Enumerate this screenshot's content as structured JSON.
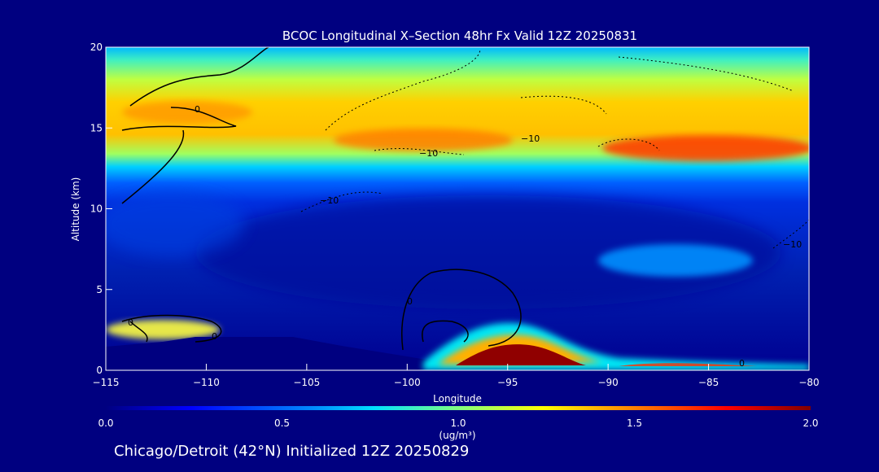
{
  "chart_data": {
    "type": "heatmap",
    "title": "BCOC Longitudinal X–Section 48hr  Fx Valid 12Z 20250831",
    "xlabel": "Longitude",
    "ylabel": "Altitude (km)",
    "xlim": [
      -115,
      -80
    ],
    "ylim": [
      0,
      20
    ],
    "x_ticks": [
      -115,
      -110,
      -105,
      -100,
      -95,
      -90,
      -85,
      -80
    ],
    "x_tick_labels": [
      "−115",
      "−110",
      "−105",
      "−100",
      "−95",
      "−90",
      "−85",
      "−80"
    ],
    "y_ticks": [
      0,
      5,
      10,
      15,
      20
    ],
    "y_tick_labels": [
      "0",
      "5",
      "10",
      "15",
      "20"
    ],
    "colorbar": {
      "min": 0.0,
      "max": 2.0,
      "ticks": [
        0.0,
        0.5,
        1.0,
        1.5,
        2.0
      ],
      "tick_labels": [
        "0.0",
        "0.5",
        "1.0",
        "1.5",
        "2.0"
      ],
      "units": "(ug/m³)",
      "colors": [
        "#000080",
        "#0000ff",
        "#0080ff",
        "#00ffff",
        "#80ff80",
        "#ffff00",
        "#ff8000",
        "#ff0000",
        "#800000"
      ]
    },
    "contour_labels": [
      "0",
      "−10",
      "−10",
      "−10",
      "0",
      "0",
      "0",
      "0",
      "−10"
    ],
    "features": [
      {
        "name": "upper-layer-band",
        "lon_range": [
          -115,
          -80
        ],
        "alt_range": [
          12.5,
          17.5
        ],
        "value": 1.0
      },
      {
        "name": "upper-peak-east",
        "lon": -86,
        "alt": 14,
        "value": 1.5
      },
      {
        "name": "surface-plume",
        "lon": -94,
        "alt": 0.8,
        "value": 2.0
      },
      {
        "name": "mid-level-patch",
        "lon": -88,
        "alt": 6.5,
        "value": 0.5
      },
      {
        "name": "western-low-level",
        "lon": -112,
        "alt": 2.2,
        "value": 1.0
      }
    ]
  },
  "footer": {
    "caption": "Chicago/Detroit (42°N) Initialized 12Z 20250829"
  }
}
